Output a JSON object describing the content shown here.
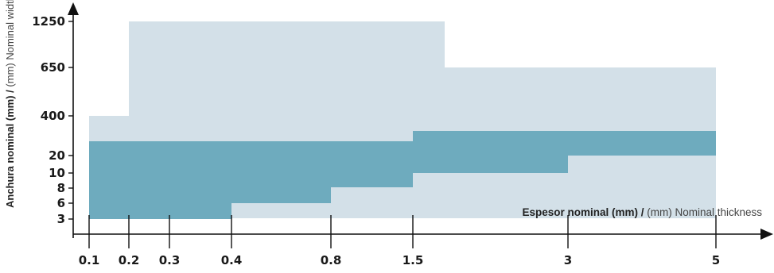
{
  "chart_data": {
    "type": "area",
    "x_ticks": [
      "0.1",
      "0.2",
      "0.3",
      "0.4",
      "0.8",
      "1.5",
      "3",
      "5"
    ],
    "y_ticks": [
      "3",
      "6",
      "8",
      "10",
      "20",
      "400",
      "650",
      "1250"
    ],
    "xlabel": {
      "main": "Espesor nominal (mm) /",
      "secondary": " (mm) Nominal thickness"
    },
    "ylabel": {
      "main": "Anchura nominal (mm) /",
      "secondary": " (mm) Nominal width"
    },
    "series": [
      {
        "color": "#d3e0e8",
        "steps": [
          {
            "x_from": "0.1",
            "x_to": "0.2",
            "y": "400"
          },
          {
            "x_from": "0.2",
            "x_to": "1.5",
            "y": "1250"
          },
          {
            "x_from": "1.5",
            "x_to": "5",
            "y": "650"
          }
        ]
      },
      {
        "color": "#6eabbe",
        "steps": [
          {
            "x_from": "0.1",
            "x_to": "0.4",
            "y_top": "20",
            "y_bottom": "3"
          },
          {
            "x_from": "0.4",
            "x_to": "0.8",
            "y_top": "20",
            "y_bottom": "6"
          },
          {
            "x_from": "0.8",
            "x_to": "1.5",
            "y_top": "20",
            "y_bottom": "8"
          },
          {
            "x_from": "1.5",
            "x_to": "3",
            "y_top": "20",
            "y_bottom": "10"
          },
          {
            "x_from": "3",
            "x_to": "5",
            "y_top": "20",
            "y_bottom": "20"
          }
        ]
      }
    ],
    "grid": false
  }
}
